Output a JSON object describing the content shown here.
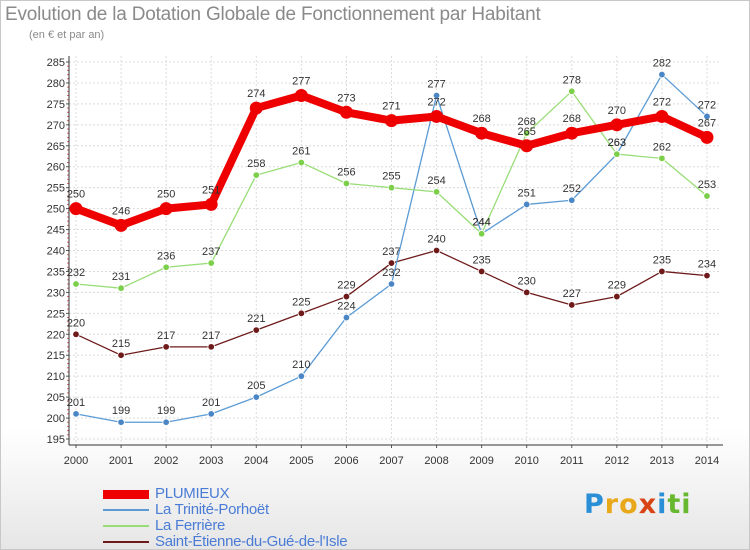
{
  "header": {
    "title": "Evolution de la Dotation Globale de Fonctionnement par Habitant",
    "subtitle": "(en € et par an)"
  },
  "logo": {
    "text": "Proxiti",
    "letters": [
      "P",
      "r",
      "o",
      "x",
      "i",
      "t",
      "i"
    ],
    "colors": [
      "#2a8fd6",
      "#e8a81a",
      "#e8a81a",
      "#d84416",
      "#2a8fd6",
      "#67b82e",
      "#67b82e"
    ]
  },
  "chart_data": {
    "type": "line",
    "title": "Evolution de la Dotation Globale de Fonctionnement par Habitant",
    "subtitle": "(en € et par an)",
    "xlabel": "",
    "ylabel": "",
    "ylim": [
      195,
      285
    ],
    "ytick_step": 5,
    "grid": true,
    "legend_position": "bottom-left",
    "categories": [
      "2000",
      "2001",
      "2002",
      "2003",
      "2004",
      "2005",
      "2006",
      "2007",
      "2008",
      "2009",
      "2010",
      "2011",
      "2012",
      "2013",
      "2014"
    ],
    "series": [
      {
        "name": "Saint-Étienne-du-Gué-de-l'Isle",
        "color": "#6e1a1a",
        "marker_color": "#6e1a1a",
        "values": [
          220,
          215,
          217,
          217,
          221,
          225,
          229,
          237,
          240,
          235,
          230,
          227,
          229,
          235,
          234
        ],
        "labels": [
          "220",
          "215",
          "217",
          "217",
          "221",
          "225",
          "229",
          "237",
          "240",
          "235",
          "230",
          "227",
          "229",
          "235",
          "234"
        ]
      },
      {
        "name": "La Trinité-Porhoët",
        "color": "#5b9bd5",
        "marker_color": "#4a86c5",
        "values": [
          201,
          199,
          199,
          201,
          205,
          210,
          224,
          232,
          277,
          244,
          251,
          252,
          263,
          282,
          272
        ],
        "labels": [
          "201",
          "199",
          "199",
          "201",
          "205",
          "210",
          "224",
          "232",
          "277",
          "244",
          "251",
          "252",
          "263",
          "282",
          "272"
        ]
      },
      {
        "name": "La Ferrière",
        "color": "#99dd77",
        "marker_color": "#7ccf4a",
        "values": [
          232,
          231,
          236,
          237,
          258,
          261,
          256,
          255,
          254,
          244,
          268,
          278,
          263,
          262,
          253
        ],
        "labels": [
          "232",
          "231",
          "236",
          "237",
          "258",
          "261",
          "256",
          "255",
          "254",
          "244",
          "268",
          "278",
          "263",
          "262",
          "253"
        ]
      },
      {
        "name": "PLUMIEUX",
        "color": "#ee0000",
        "marker_color": "#ee0000",
        "values": [
          250,
          246,
          250,
          251,
          274,
          277,
          273,
          271,
          272,
          268,
          265,
          268,
          270,
          272,
          267
        ],
        "labels": [
          "250",
          "246",
          "250",
          "251",
          "274",
          "277",
          "273",
          "271",
          "272",
          "268",
          "265",
          "268",
          "270",
          "272",
          "267"
        ]
      }
    ],
    "legend": [
      {
        "label": "PLUMIEUX",
        "color": "#ee0000",
        "text_color": "#4a7cd6"
      },
      {
        "label": "La Trinité-Porhoët",
        "color": "#5b9bd5",
        "text_color": "#4a7cd6"
      },
      {
        "label": "La Ferrière",
        "color": "#99dd77",
        "text_color": "#4a7cd6"
      },
      {
        "label": "Saint-Étienne-du-Gué-de-l'Isle",
        "color": "#6e1a1a",
        "text_color": "#4a7cd6"
      }
    ]
  }
}
